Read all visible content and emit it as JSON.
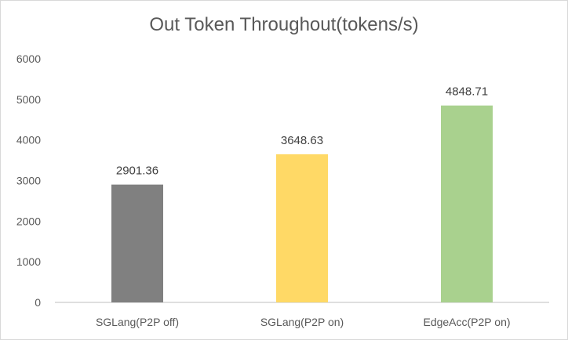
{
  "chart_data": {
    "type": "bar",
    "title": "Out Token Throughout(tokens/s)",
    "xlabel": "",
    "ylabel": "",
    "categories": [
      "SGLang(P2P off)",
      "SGLang(P2P on)",
      "EdgeAcc(P2P on)"
    ],
    "values": [
      2901.36,
      3648.63,
      4848.71
    ],
    "value_labels": [
      "2901.36",
      "3648.63",
      "4848.71"
    ],
    "colors": [
      "#808080",
      "#ffd966",
      "#a9d18e"
    ],
    "ylim": [
      0,
      6000
    ],
    "yticks": [
      0,
      1000,
      2000,
      3000,
      4000,
      5000,
      6000
    ],
    "ytick_labels": [
      "0",
      "1000",
      "2000",
      "3000",
      "4000",
      "5000",
      "6000"
    ],
    "grid": false,
    "legend": "none"
  }
}
